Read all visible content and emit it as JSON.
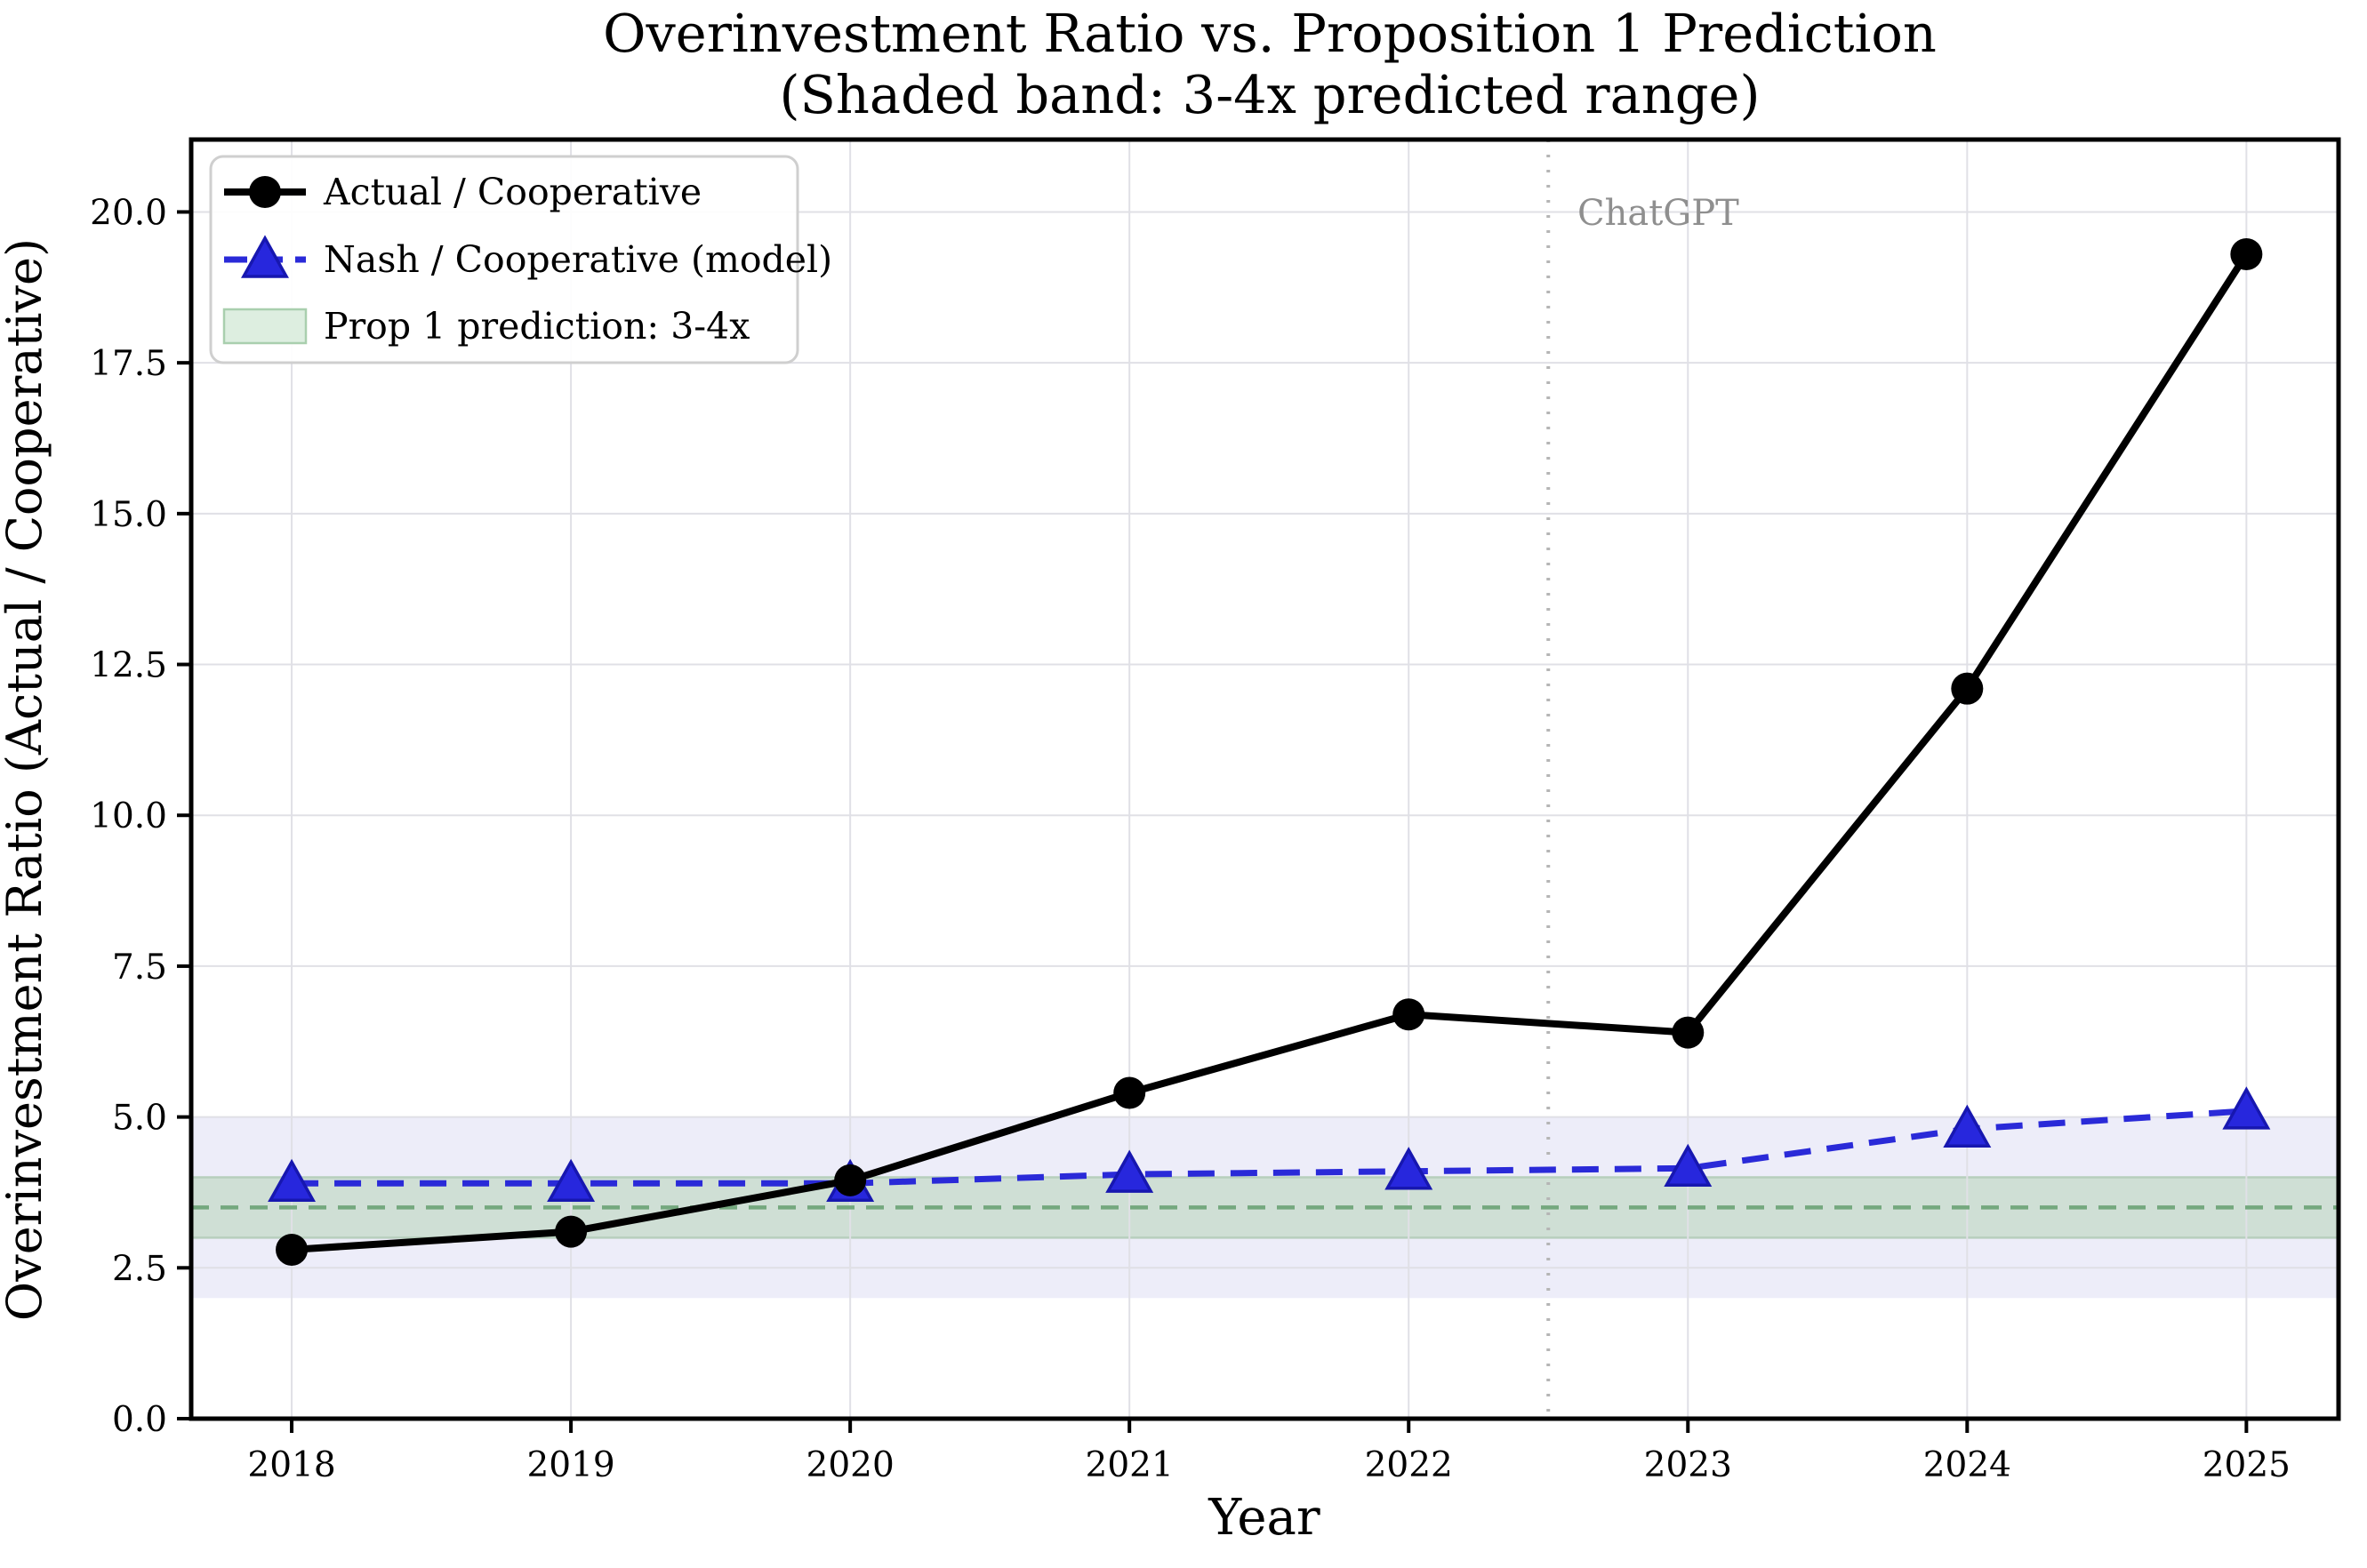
{
  "chart_data": {
    "type": "line",
    "title_line1": "Overinvestment Ratio vs. Proposition 1 Prediction",
    "title_line2": "(Shaded band: 3-4x predicted range)",
    "xlabel": "Year",
    "ylabel": "Overinvestment Ratio (Actual / Cooperative)",
    "x": [
      2018,
      2019,
      2020,
      2021,
      2022,
      2023,
      2024,
      2025
    ],
    "x_tick_labels": [
      "2018",
      "2019",
      "2020",
      "2021",
      "2022",
      "2023",
      "2024",
      "2025"
    ],
    "y_tick_values": [
      0,
      2.5,
      5,
      7.5,
      10,
      12.5,
      15,
      17.5,
      20
    ],
    "y_tick_labels": [
      "0.0",
      "2.5",
      "5.0",
      "7.5",
      "10.0",
      "12.5",
      "15.0",
      "17.5",
      "20.0"
    ],
    "xlim": [
      2017.64,
      2025.33
    ],
    "ylim": [
      0,
      21.2
    ],
    "grid": true,
    "legend_position": "upper left",
    "series": [
      {
        "name": "Actual / Cooperative",
        "color": "#000000",
        "line_style": "solid",
        "marker": "circle",
        "marker_fill": "#000000",
        "values": [
          2.8,
          3.1,
          3.95,
          5.4,
          6.7,
          6.4,
          12.1,
          19.3
        ]
      },
      {
        "name": "Nash / Cooperative (model)",
        "color": "#2a2ad8",
        "line_style": "dashed",
        "marker": "triangle-up",
        "marker_fill": "#2727dd",
        "marker_edge": "#1717b0",
        "values": [
          3.9,
          3.9,
          3.9,
          4.05,
          4.1,
          4.15,
          4.8,
          5.1
        ]
      }
    ],
    "bands": [
      {
        "name": "model-range-band",
        "from": 2.0,
        "to": 5.0,
        "fill": "#ededf9",
        "edge": ""
      },
      {
        "name": "Prop 1 prediction: 3-4x",
        "from": 3.0,
        "to": 4.0,
        "fill": "#cfdfd5",
        "edge": "#b7cfbd",
        "legend_swatch_fill": "#ddeee0",
        "legend_swatch_edge": "#a9cfae"
      }
    ],
    "reference_lines": [
      {
        "name": "prop1-midline",
        "orientation": "horizontal",
        "value": 3.5,
        "color": "#74a87e",
        "style": "dashed"
      },
      {
        "name": "chatgpt-launch-line",
        "orientation": "vertical",
        "value": 2022.5,
        "color": "#b5b5b5",
        "style": "dotted"
      }
    ],
    "annotation": {
      "text": "ChatGPT",
      "x": 2022.5,
      "y": 20.0,
      "color": "#8f8f8f"
    },
    "colors": {
      "gridline": "#e0e0e6",
      "spine": "#000000",
      "legend_border": "#cfcfcf",
      "legend_background": "#ffffff"
    }
  }
}
